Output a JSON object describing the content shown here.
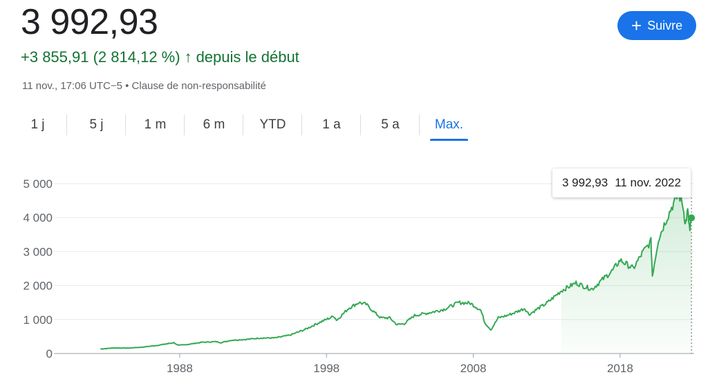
{
  "quote": {
    "price": "3 992,93",
    "change": "+3 855,91 (2 814,12 %)",
    "arrow": "↑",
    "change_suffix": "depuis le début",
    "meta": "11 nov., 17:06 UTC−5 • Clause de non-responsabilité"
  },
  "follow_button": {
    "icon": "plus-icon",
    "label": "Suivre"
  },
  "tabs": [
    "1 j",
    "5 j",
    "1 m",
    "6 m",
    "YTD",
    "1 a",
    "5 a",
    "Max."
  ],
  "active_tab": "Max.",
  "tooltip": {
    "value": "3 992,93",
    "date": "11 nov. 2022"
  },
  "colors": {
    "line": "#34a853",
    "accent": "#1a73e8",
    "positive": "#137333"
  },
  "chart_data": {
    "type": "line",
    "x": [
      1982.6,
      1983.5,
      1984.5,
      1985.5,
      1986.5,
      1987.6,
      1987.9,
      1988.5,
      1989.5,
      1990.5,
      1990.8,
      1991.5,
      1992.5,
      1993.5,
      1994.5,
      1995.5,
      1996.5,
      1997.5,
      1998.5,
      1998.7,
      1999.5,
      2000.2,
      2000.7,
      2001.3,
      2001.7,
      2002.3,
      2002.8,
      2003.3,
      2004,
      2005,
      2006,
      2007,
      2007.8,
      2008.5,
      2008.8,
      2009.2,
      2009.7,
      2010.3,
      2010.8,
      2011.5,
      2011.8,
      2012.5,
      2013,
      2014,
      2015,
      2015.7,
      2016.1,
      2016.8,
      2017.5,
      2018,
      2018.9,
      2019.5,
      2020.1,
      2020.2,
      2020.6,
      2021,
      2021.5,
      2022,
      2022.3,
      2022.45,
      2022.6,
      2022.75,
      2022.86
    ],
    "y": [
      130,
      165,
      160,
      190,
      240,
      320,
      240,
      265,
      330,
      350,
      320,
      390,
      415,
      455,
      460,
      540,
      700,
      910,
      1100,
      980,
      1330,
      1500,
      1450,
      1200,
      1050,
      1050,
      850,
      880,
      1120,
      1200,
      1300,
      1500,
      1480,
      1280,
      900,
      700,
      1050,
      1120,
      1200,
      1330,
      1150,
      1350,
      1480,
      1850,
      2080,
      1950,
      1900,
      2180,
      2450,
      2750,
      2500,
      2950,
      3300,
      2300,
      3350,
      3800,
      4300,
      4700,
      4300,
      3800,
      4200,
      3600,
      3993
    ],
    "xlim": [
      1980.0,
      2022.95
    ],
    "ylim": [
      0,
      5000
    ],
    "x_ticks": [
      "1988",
      "1998",
      "2008",
      "2018"
    ],
    "x_tick_values": [
      1988,
      1998,
      2008,
      2018
    ],
    "y_ticks": [
      "0",
      "1 000",
      "2 000",
      "3 000",
      "4 000",
      "5 000"
    ],
    "y_tick_values": [
      0,
      1000,
      2000,
      3000,
      4000,
      5000
    ],
    "grid": true
  }
}
